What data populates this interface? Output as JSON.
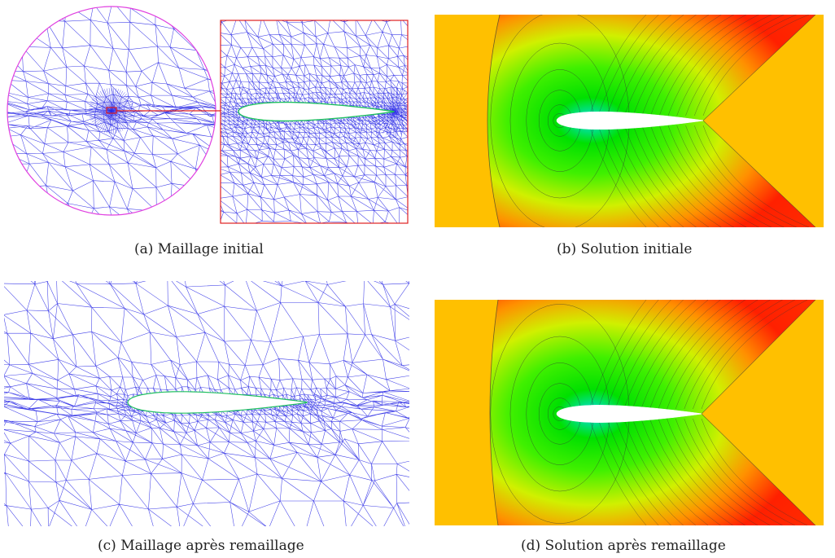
{
  "figures": [
    {
      "id": "a",
      "caption": "(a) Maillage initial",
      "kind": "mesh-initial"
    },
    {
      "id": "b",
      "caption": "(b) Solution initiale",
      "kind": "solution-initial"
    },
    {
      "id": "c",
      "caption": "(c) Maillage après remaillage",
      "kind": "mesh-adapted"
    },
    {
      "id": "d",
      "caption": "(d) Solution après remaillage",
      "kind": "solution-adapted"
    }
  ],
  "colors": {
    "mesh_edge": "#2a2ae6",
    "outer_boundary": "#e040e0",
    "zoom_frame": "#e02020",
    "airfoil_wall": "#20c060",
    "field_freestream": "#ffc000",
    "field_stagnation": "#00e000",
    "field_expansion": "#ff2000",
    "isoline": "#333333"
  }
}
